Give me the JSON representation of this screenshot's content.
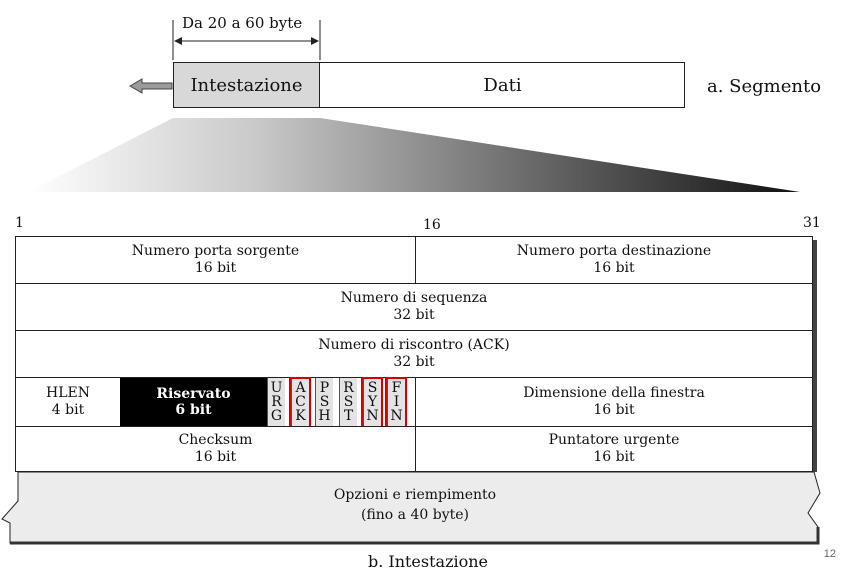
{
  "segment": {
    "range_label": "Da 20 a 60 byte",
    "header_label": "Intestazione",
    "data_label": "Dati",
    "caption": "a. Segmento"
  },
  "bits": {
    "start": "1",
    "mid": "16",
    "end": "31"
  },
  "rows": {
    "src_port": {
      "name": "Numero porta sorgente",
      "size": "16 bit"
    },
    "dst_port": {
      "name": "Numero porta destinazione",
      "size": "16 bit"
    },
    "seq": {
      "name": "Numero di sequenza",
      "size": "32 bit"
    },
    "ack": {
      "name": "Numero di riscontro (ACK)",
      "size": "32 bit"
    },
    "hlen": {
      "name": "HLEN",
      "size": "4 bit"
    },
    "reserved": {
      "name": "Riservato",
      "size": "6 bit"
    },
    "window": {
      "name": "Dimensione della finestra",
      "size": "16 bit"
    },
    "checksum": {
      "name": "Checksum",
      "size": "16 bit"
    },
    "urgent": {
      "name": "Puntatore urgente",
      "size": "16 bit"
    },
    "options": {
      "name": "Opzioni e riempimento",
      "size": "(fino a 40 byte)"
    }
  },
  "flags": [
    {
      "letters": [
        "U",
        "R",
        "G"
      ],
      "highlighted": false
    },
    {
      "letters": [
        "A",
        "C",
        "K"
      ],
      "highlighted": true
    },
    {
      "letters": [
        "P",
        "S",
        "H"
      ],
      "highlighted": false
    },
    {
      "letters": [
        "R",
        "S",
        "T"
      ],
      "highlighted": false
    },
    {
      "letters": [
        "S",
        "Y",
        "N"
      ],
      "highlighted": true
    },
    {
      "letters": [
        "F",
        "I",
        "N"
      ],
      "highlighted": true
    }
  ],
  "highlight_color": "#d60000",
  "reserved_color": "#000000",
  "caption_b": "b. Intestazione",
  "slide_number": "12"
}
